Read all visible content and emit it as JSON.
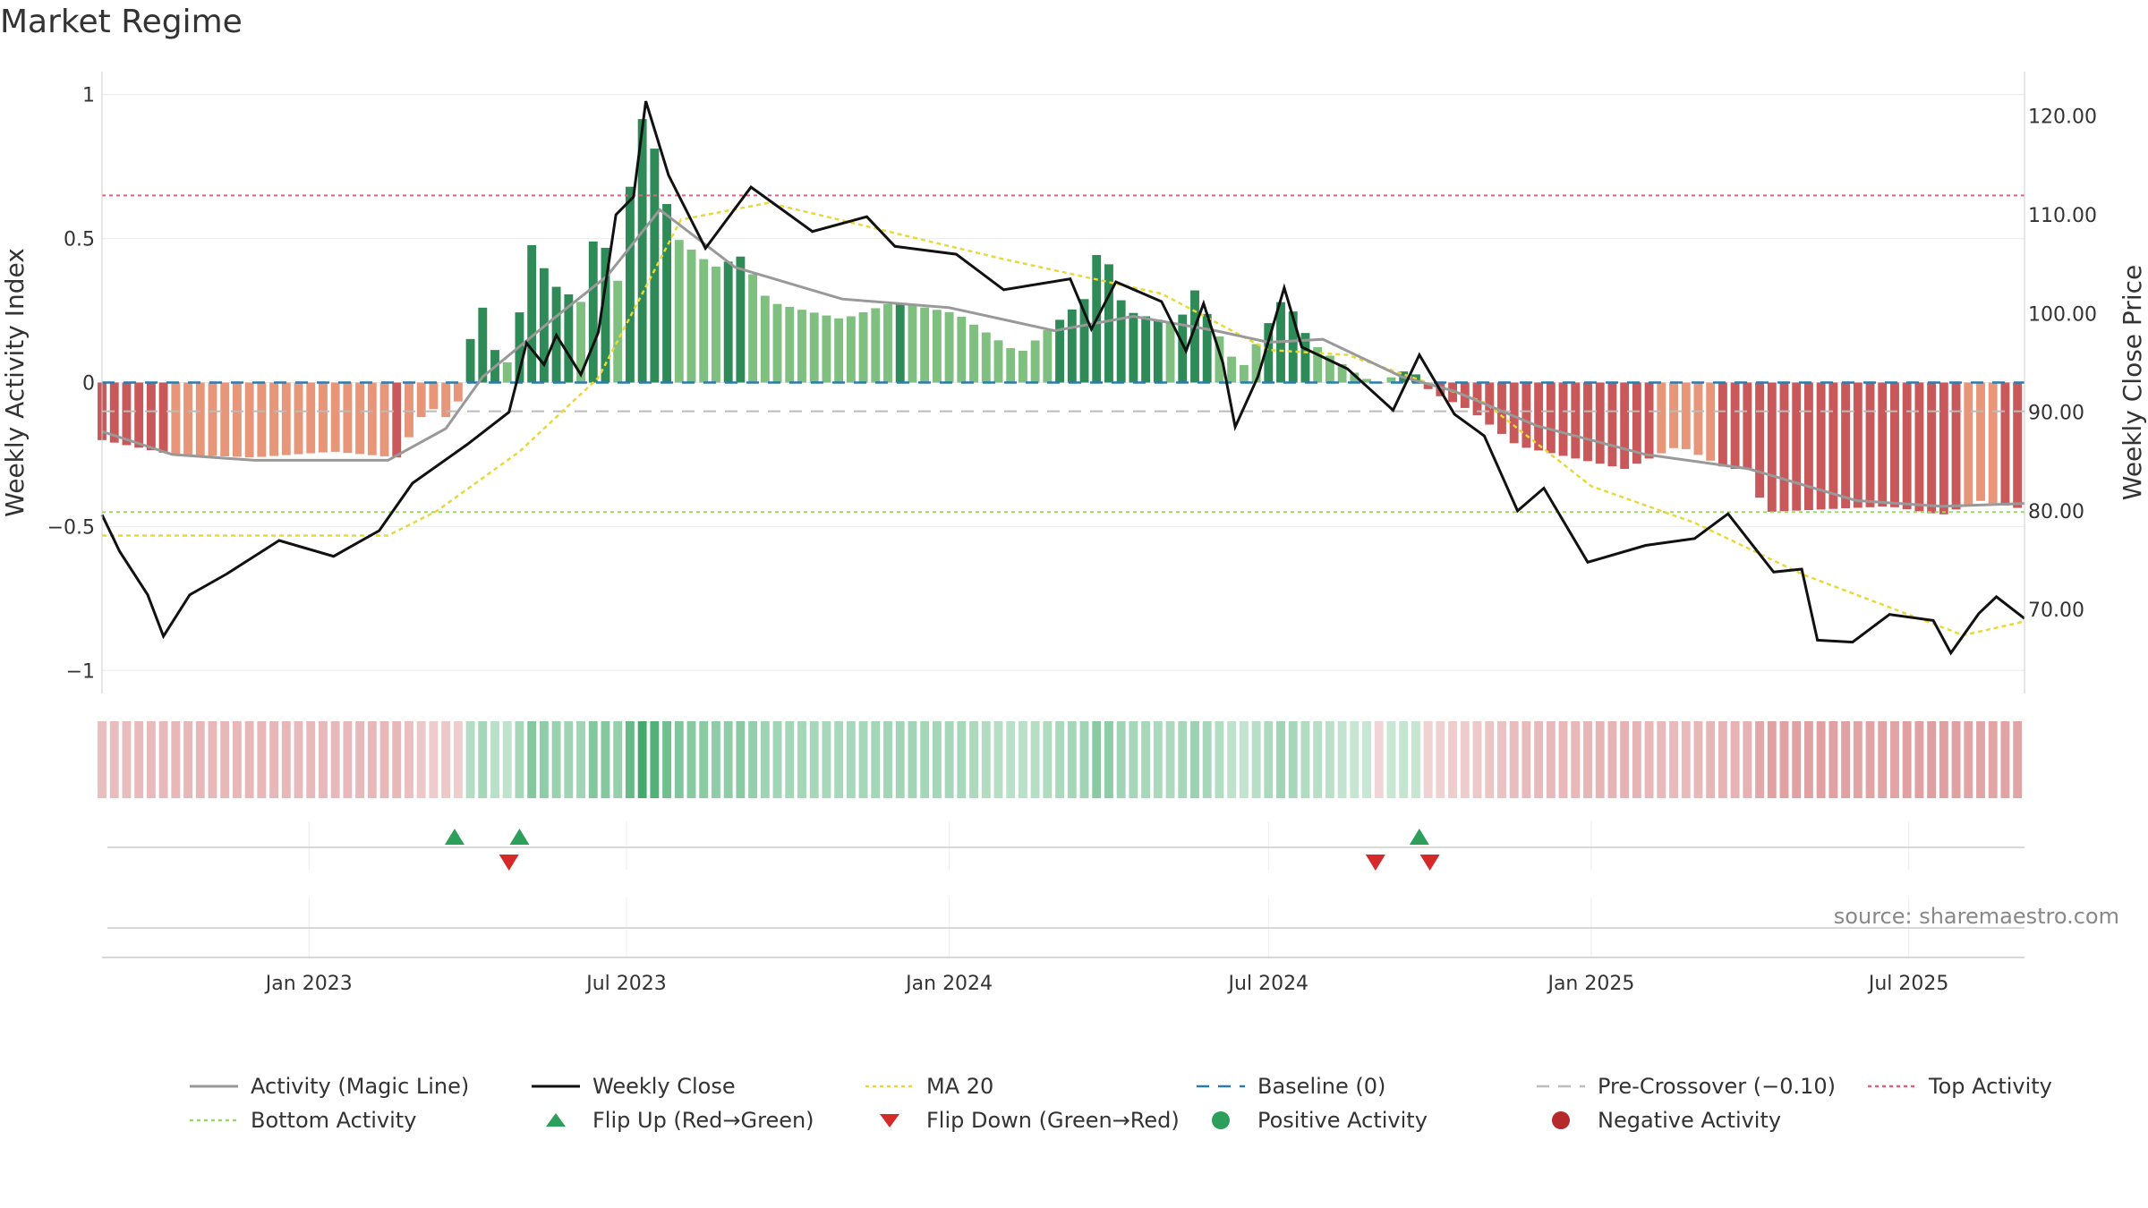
{
  "title": "Market Regime",
  "source": "source: sharemaestro.com",
  "colors": {
    "strong_green": "#2e8b57",
    "light_green": "#7fbf7f",
    "strong_red": "#c9585a",
    "light_red": "#e8967a",
    "activity_line": "#999999",
    "close_line": "#111111",
    "ma20": "#e8d83a",
    "baseline": "#2a7ab0",
    "pre_crossover": "#bbbbbb",
    "top_activity": "#e0607e",
    "bottom_activity": "#9ed86a",
    "flip_up": "#2ca05a",
    "flip_down": "#d42a2a"
  },
  "chart_data": {
    "type": "bar",
    "x_axis": {
      "start": "2022-09-05",
      "end": "2025-09-05",
      "ticks": [
        {
          "date": "2023-01-01",
          "label": "Jan 2023"
        },
        {
          "date": "2023-07-01",
          "label": "Jul 2023"
        },
        {
          "date": "2024-01-01",
          "label": "Jan 2024"
        },
        {
          "date": "2024-07-01",
          "label": "Jul 2024"
        },
        {
          "date": "2025-01-01",
          "label": "Jan 2025"
        },
        {
          "date": "2025-07-01",
          "label": "Jul 2025"
        }
      ]
    },
    "y_left": {
      "label": "Weekly Activity Index",
      "range": [
        -1.08,
        1.08
      ],
      "ticks": [
        {
          "value": 1,
          "label": "1"
        },
        {
          "value": 0.5,
          "label": "0.5"
        },
        {
          "value": 0,
          "label": "0"
        },
        {
          "value": -0.5,
          "label": "−0.5"
        },
        {
          "value": -1,
          "label": "−1"
        }
      ]
    },
    "y_right": {
      "label": "Weekly Close Price",
      "range": [
        61.5,
        124.5
      ],
      "ticks": [
        {
          "value": 120,
          "label": "120.00"
        },
        {
          "value": 110,
          "label": "110.00"
        },
        {
          "value": 100,
          "label": "100.00"
        },
        {
          "value": 90,
          "label": "90.00"
        },
        {
          "value": 80,
          "label": "80.00"
        },
        {
          "value": 70,
          "label": "70.00"
        }
      ]
    },
    "reference_lines": {
      "baseline": 0,
      "pre_crossover": -0.1,
      "top_activity": 0.65,
      "bottom_activity": -0.45
    },
    "activity_anchors": [
      {
        "date": "2022-09-05",
        "value": -0.2
      },
      {
        "date": "2022-10-15",
        "value": -0.25
      },
      {
        "date": "2022-12-01",
        "value": -0.26
      },
      {
        "date": "2023-01-15",
        "value": -0.24
      },
      {
        "date": "2023-02-20",
        "value": -0.26
      },
      {
        "date": "2023-03-10",
        "value": -0.08
      },
      {
        "date": "2023-03-25",
        "value": -0.14
      },
      {
        "date": "2023-04-01",
        "value": 0.12
      },
      {
        "date": "2023-04-10",
        "value": 0.26
      },
      {
        "date": "2023-04-20",
        "value": 0.05
      },
      {
        "date": "2023-04-28",
        "value": 0.09
      },
      {
        "date": "2023-05-06",
        "value": 0.5
      },
      {
        "date": "2023-05-20",
        "value": 0.34
      },
      {
        "date": "2023-06-05",
        "value": 0.28
      },
      {
        "date": "2023-06-15",
        "value": 0.58
      },
      {
        "date": "2023-06-25",
        "value": 0.3
      },
      {
        "date": "2023-07-01",
        "value": 0.62
      },
      {
        "date": "2023-07-08",
        "value": 0.83
      },
      {
        "date": "2023-07-12",
        "value": 1.0
      },
      {
        "date": "2023-07-20",
        "value": 0.7
      },
      {
        "date": "2023-07-30",
        "value": 0.5
      },
      {
        "date": "2023-08-20",
        "value": 0.4
      },
      {
        "date": "2023-09-05",
        "value": 0.44
      },
      {
        "date": "2023-09-20",
        "value": 0.28
      },
      {
        "date": "2023-11-01",
        "value": 0.22
      },
      {
        "date": "2023-12-01",
        "value": 0.28
      },
      {
        "date": "2024-01-05",
        "value": 0.24
      },
      {
        "date": "2024-02-10",
        "value": 0.1
      },
      {
        "date": "2024-03-20",
        "value": 0.3
      },
      {
        "date": "2024-03-27",
        "value": 0.5
      },
      {
        "date": "2024-04-10",
        "value": 0.25
      },
      {
        "date": "2024-05-10",
        "value": 0.2
      },
      {
        "date": "2024-05-20",
        "value": 0.32
      },
      {
        "date": "2024-06-01",
        "value": 0.18
      },
      {
        "date": "2024-06-15",
        "value": 0.04
      },
      {
        "date": "2024-07-10",
        "value": 0.3
      },
      {
        "date": "2024-07-25",
        "value": 0.14
      },
      {
        "date": "2024-08-20",
        "value": 0.03
      },
      {
        "date": "2024-09-01",
        "value": -0.005
      },
      {
        "date": "2024-09-20",
        "value": 0.05
      },
      {
        "date": "2024-10-01",
        "value": -0.03
      },
      {
        "date": "2024-10-25",
        "value": -0.1
      },
      {
        "date": "2024-11-20",
        "value": -0.22
      },
      {
        "date": "2024-12-20",
        "value": -0.26
      },
      {
        "date": "2025-01-20",
        "value": -0.3
      },
      {
        "date": "2025-02-20",
        "value": -0.22
      },
      {
        "date": "2025-03-20",
        "value": -0.3
      },
      {
        "date": "2025-04-01",
        "value": -0.3
      },
      {
        "date": "2025-04-10",
        "value": -0.45
      },
      {
        "date": "2025-05-15",
        "value": -0.44
      },
      {
        "date": "2025-06-20",
        "value": -0.43
      },
      {
        "date": "2025-07-20",
        "value": -0.46
      },
      {
        "date": "2025-08-10",
        "value": -0.41
      },
      {
        "date": "2025-09-05",
        "value": -0.44
      }
    ],
    "magic_line_anchors": [
      {
        "date": "2022-09-05",
        "value": -0.17
      },
      {
        "date": "2022-10-15",
        "value": -0.25
      },
      {
        "date": "2022-12-01",
        "value": -0.27
      },
      {
        "date": "2023-02-15",
        "value": -0.27
      },
      {
        "date": "2023-03-20",
        "value": -0.16
      },
      {
        "date": "2023-04-10",
        "value": 0.02
      },
      {
        "date": "2023-05-20",
        "value": 0.22
      },
      {
        "date": "2023-06-20",
        "value": 0.37
      },
      {
        "date": "2023-07-20",
        "value": 0.6
      },
      {
        "date": "2023-09-01",
        "value": 0.4
      },
      {
        "date": "2023-11-01",
        "value": 0.29
      },
      {
        "date": "2024-01-01",
        "value": 0.26
      },
      {
        "date": "2024-03-01",
        "value": 0.18
      },
      {
        "date": "2024-04-15",
        "value": 0.23
      },
      {
        "date": "2024-06-01",
        "value": 0.18
      },
      {
        "date": "2024-07-01",
        "value": 0.14
      },
      {
        "date": "2024-08-01",
        "value": 0.15
      },
      {
        "date": "2024-09-15",
        "value": 0.02
      },
      {
        "date": "2024-10-15",
        "value": -0.03
      },
      {
        "date": "2024-12-01",
        "value": -0.15
      },
      {
        "date": "2025-02-01",
        "value": -0.25
      },
      {
        "date": "2025-04-01",
        "value": -0.3
      },
      {
        "date": "2025-06-01",
        "value": -0.41
      },
      {
        "date": "2025-07-20",
        "value": -0.43
      },
      {
        "date": "2025-09-05",
        "value": -0.42
      }
    ],
    "close_anchors": [
      {
        "date": "2022-09-05",
        "value": 79.6
      },
      {
        "date": "2022-09-15",
        "value": 75.9
      },
      {
        "date": "2022-10-01",
        "value": 71.5
      },
      {
        "date": "2022-10-10",
        "value": 67.3
      },
      {
        "date": "2022-10-25",
        "value": 71.5
      },
      {
        "date": "2022-11-15",
        "value": 73.6
      },
      {
        "date": "2022-12-15",
        "value": 77.0
      },
      {
        "date": "2023-01-15",
        "value": 75.4
      },
      {
        "date": "2023-02-10",
        "value": 78.0
      },
      {
        "date": "2023-03-01",
        "value": 82.8
      },
      {
        "date": "2023-04-01",
        "value": 86.7
      },
      {
        "date": "2023-04-25",
        "value": 90.0
      },
      {
        "date": "2023-05-05",
        "value": 97.0
      },
      {
        "date": "2023-05-15",
        "value": 94.8
      },
      {
        "date": "2023-05-22",
        "value": 97.8
      },
      {
        "date": "2023-06-05",
        "value": 93.8
      },
      {
        "date": "2023-06-15",
        "value": 98.1
      },
      {
        "date": "2023-06-25",
        "value": 110.0
      },
      {
        "date": "2023-07-05",
        "value": 111.8
      },
      {
        "date": "2023-07-12",
        "value": 121.5
      },
      {
        "date": "2023-07-25",
        "value": 114.0
      },
      {
        "date": "2023-08-15",
        "value": 106.6
      },
      {
        "date": "2023-09-10",
        "value": 112.8
      },
      {
        "date": "2023-10-15",
        "value": 108.3
      },
      {
        "date": "2023-11-15",
        "value": 109.8
      },
      {
        "date": "2023-12-01",
        "value": 106.8
      },
      {
        "date": "2024-01-05",
        "value": 106.0
      },
      {
        "date": "2024-02-01",
        "value": 102.4
      },
      {
        "date": "2024-03-10",
        "value": 103.5
      },
      {
        "date": "2024-03-22",
        "value": 98.4
      },
      {
        "date": "2024-04-05",
        "value": 103.2
      },
      {
        "date": "2024-05-01",
        "value": 101.2
      },
      {
        "date": "2024-05-15",
        "value": 96.2
      },
      {
        "date": "2024-05-25",
        "value": 101.0
      },
      {
        "date": "2024-06-05",
        "value": 95.0
      },
      {
        "date": "2024-06-12",
        "value": 88.5
      },
      {
        "date": "2024-06-25",
        "value": 93.6
      },
      {
        "date": "2024-07-10",
        "value": 102.6
      },
      {
        "date": "2024-07-20",
        "value": 96.6
      },
      {
        "date": "2024-08-15",
        "value": 94.4
      },
      {
        "date": "2024-09-10",
        "value": 90.2
      },
      {
        "date": "2024-09-25",
        "value": 95.8
      },
      {
        "date": "2024-10-15",
        "value": 89.8
      },
      {
        "date": "2024-11-01",
        "value": 87.6
      },
      {
        "date": "2024-11-20",
        "value": 80.0
      },
      {
        "date": "2024-12-05",
        "value": 82.3
      },
      {
        "date": "2024-12-30",
        "value": 74.8
      },
      {
        "date": "2025-02-01",
        "value": 76.5
      },
      {
        "date": "2025-03-01",
        "value": 77.2
      },
      {
        "date": "2025-03-20",
        "value": 79.7
      },
      {
        "date": "2025-04-15",
        "value": 73.8
      },
      {
        "date": "2025-05-01",
        "value": 74.1
      },
      {
        "date": "2025-05-10",
        "value": 66.9
      },
      {
        "date": "2025-05-30",
        "value": 66.7
      },
      {
        "date": "2025-06-20",
        "value": 69.5
      },
      {
        "date": "2025-07-15",
        "value": 68.9
      },
      {
        "date": "2025-07-25",
        "value": 65.6
      },
      {
        "date": "2025-08-10",
        "value": 69.6
      },
      {
        "date": "2025-08-20",
        "value": 71.3
      },
      {
        "date": "2025-09-05",
        "value": 69.1
      }
    ],
    "ma20_anchors": [
      {
        "date": "2022-09-05",
        "value": 77.5
      },
      {
        "date": "2023-02-15",
        "value": 77.5
      },
      {
        "date": "2023-03-15",
        "value": 80.0
      },
      {
        "date": "2023-05-01",
        "value": 86.0
      },
      {
        "date": "2023-06-15",
        "value": 93.5
      },
      {
        "date": "2023-08-01",
        "value": 109.5
      },
      {
        "date": "2023-09-20",
        "value": 111.2
      },
      {
        "date": "2024-02-01",
        "value": 105.5
      },
      {
        "date": "2024-05-01",
        "value": 102.0
      },
      {
        "date": "2024-07-01",
        "value": 96.3
      },
      {
        "date": "2024-08-15",
        "value": 95.8
      },
      {
        "date": "2024-11-01",
        "value": 91.0
      },
      {
        "date": "2025-01-01",
        "value": 82.5
      },
      {
        "date": "2025-03-01",
        "value": 78.8
      },
      {
        "date": "2025-05-01",
        "value": 73.6
      },
      {
        "date": "2025-08-01",
        "value": 67.4
      },
      {
        "date": "2025-09-05",
        "value": 68.8
      }
    ],
    "flip_up": [
      "2023-03-25",
      "2023-05-01",
      "2024-09-25"
    ],
    "flip_down": [
      "2023-04-25",
      "2024-08-31",
      "2024-10-01"
    ]
  },
  "legend": [
    {
      "key": "magic",
      "label": "Activity (Magic Line)",
      "style": "solid",
      "color": "#999999"
    },
    {
      "key": "close",
      "label": "Weekly Close",
      "style": "solid",
      "color": "#111111"
    },
    {
      "key": "ma20",
      "label": "MA 20",
      "style": "dotted",
      "color": "#e8d83a"
    },
    {
      "key": "baseline",
      "label": "Baseline (0)",
      "style": "dashed",
      "color": "#2a7ab0"
    },
    {
      "key": "precross",
      "label": "Pre-Crossover (−0.10)",
      "style": "dashed",
      "color": "#bbbbbb"
    },
    {
      "key": "top",
      "label": "Top Activity",
      "style": "dotted",
      "color": "#e0607e"
    },
    {
      "key": "bottom",
      "label": "Bottom Activity",
      "style": "dotted",
      "color": "#9ed86a"
    },
    {
      "key": "flipup",
      "label": "Flip Up (Red→Green)",
      "style": "triangle-up",
      "color": "#2ca05a"
    },
    {
      "key": "flipdown",
      "label": "Flip Down (Green→Red)",
      "style": "triangle-down",
      "color": "#d42a2a"
    },
    {
      "key": "pos",
      "label": "Positive Activity",
      "style": "dot",
      "color": "#2ca05a"
    },
    {
      "key": "neg",
      "label": "Negative Activity",
      "style": "dot",
      "color": "#b52a2a"
    }
  ]
}
